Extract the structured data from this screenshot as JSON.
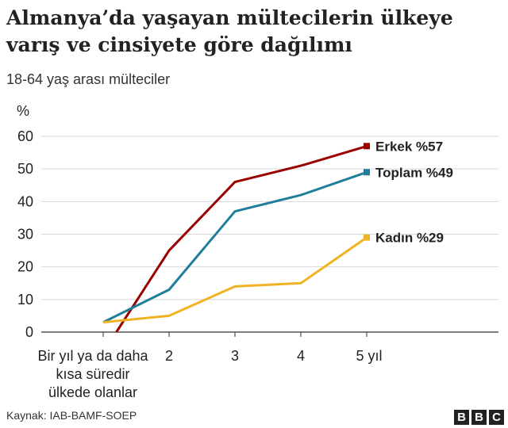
{
  "title_line1": "Almanya’da yaşayan mültecilerin ülkeye",
  "title_line2": "varış ve cinsiyete göre dağılımı",
  "subtitle": "18-64 yaş arası mülteciler",
  "source": "Kaynak: IAB-BAMF-SOEP",
  "logo_letters": [
    "B",
    "B",
    "C"
  ],
  "chart_data": {
    "type": "line",
    "ylabel": "%",
    "ylim": [
      0,
      60
    ],
    "yticks": [
      0,
      10,
      20,
      30,
      40,
      50,
      60
    ],
    "x": [
      1,
      2,
      3,
      4,
      5
    ],
    "x_tick_labels": [
      [
        "Bir yıl ya da daha",
        "kısa süredir",
        "ülkede olanlar"
      ],
      [
        "2"
      ],
      [
        "3"
      ],
      [
        "4"
      ],
      [
        "5 yıl"
      ]
    ],
    "grid": "horizontal",
    "series": [
      {
        "name": "Erkek",
        "label": "Erkek %57",
        "color": "#990000",
        "x": [
          1.2,
          2,
          3,
          4,
          5
        ],
        "values": [
          0,
          25,
          46,
          51,
          57
        ]
      },
      {
        "name": "Toplam",
        "label": "Toplam %49",
        "color": "#1f7e99",
        "x": [
          1,
          2,
          3,
          4,
          5
        ],
        "values": [
          3,
          13,
          37,
          42,
          49
        ]
      },
      {
        "name": "Kadın",
        "label": "Kadın %29",
        "color": "#f0b323",
        "x": [
          1,
          2,
          3,
          4,
          5
        ],
        "values": [
          3,
          5,
          14,
          15,
          29
        ]
      }
    ]
  }
}
